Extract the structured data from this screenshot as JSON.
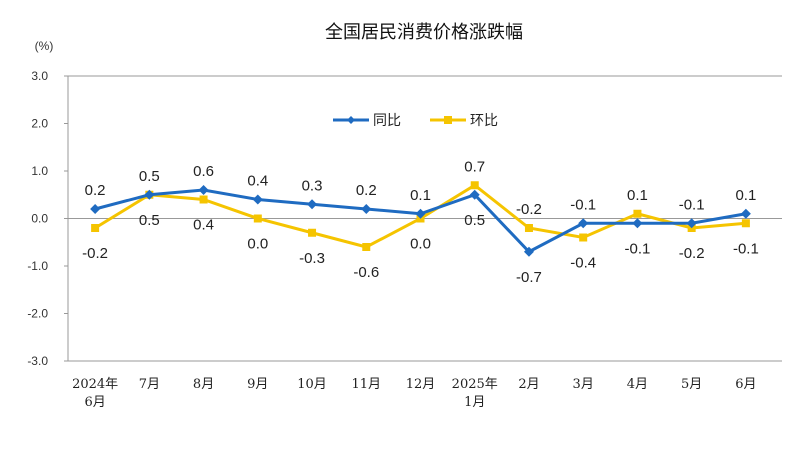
{
  "chart_data": {
    "type": "line",
    "title": "全国居民消费价格涨跌幅",
    "ylabel": "(%)",
    "ylim": [
      -3.0,
      3.0
    ],
    "yticks": [
      "3.0",
      "2.0",
      "1.0",
      "0.0",
      "-1.0",
      "-2.0",
      "-3.0"
    ],
    "categories": [
      "2024年\n6月",
      "7月",
      "8月",
      "9月",
      "10月",
      "11月",
      "12月",
      "2025年\n1月",
      "2月",
      "3月",
      "4月",
      "5月",
      "6月"
    ],
    "legend_position": "top-center",
    "grid": false,
    "series": [
      {
        "name": "同比",
        "color": "#1f6bc1",
        "marker": "diamond",
        "values": [
          0.2,
          0.5,
          0.6,
          0.4,
          0.3,
          0.2,
          0.1,
          0.5,
          -0.7,
          -0.1,
          -0.1,
          -0.1,
          0.1
        ]
      },
      {
        "name": "环比",
        "color": "#f5c400",
        "marker": "square",
        "values": [
          -0.2,
          0.5,
          0.4,
          0.0,
          -0.3,
          -0.6,
          0.0,
          0.7,
          -0.2,
          -0.4,
          0.1,
          -0.2,
          -0.1
        ]
      }
    ]
  }
}
